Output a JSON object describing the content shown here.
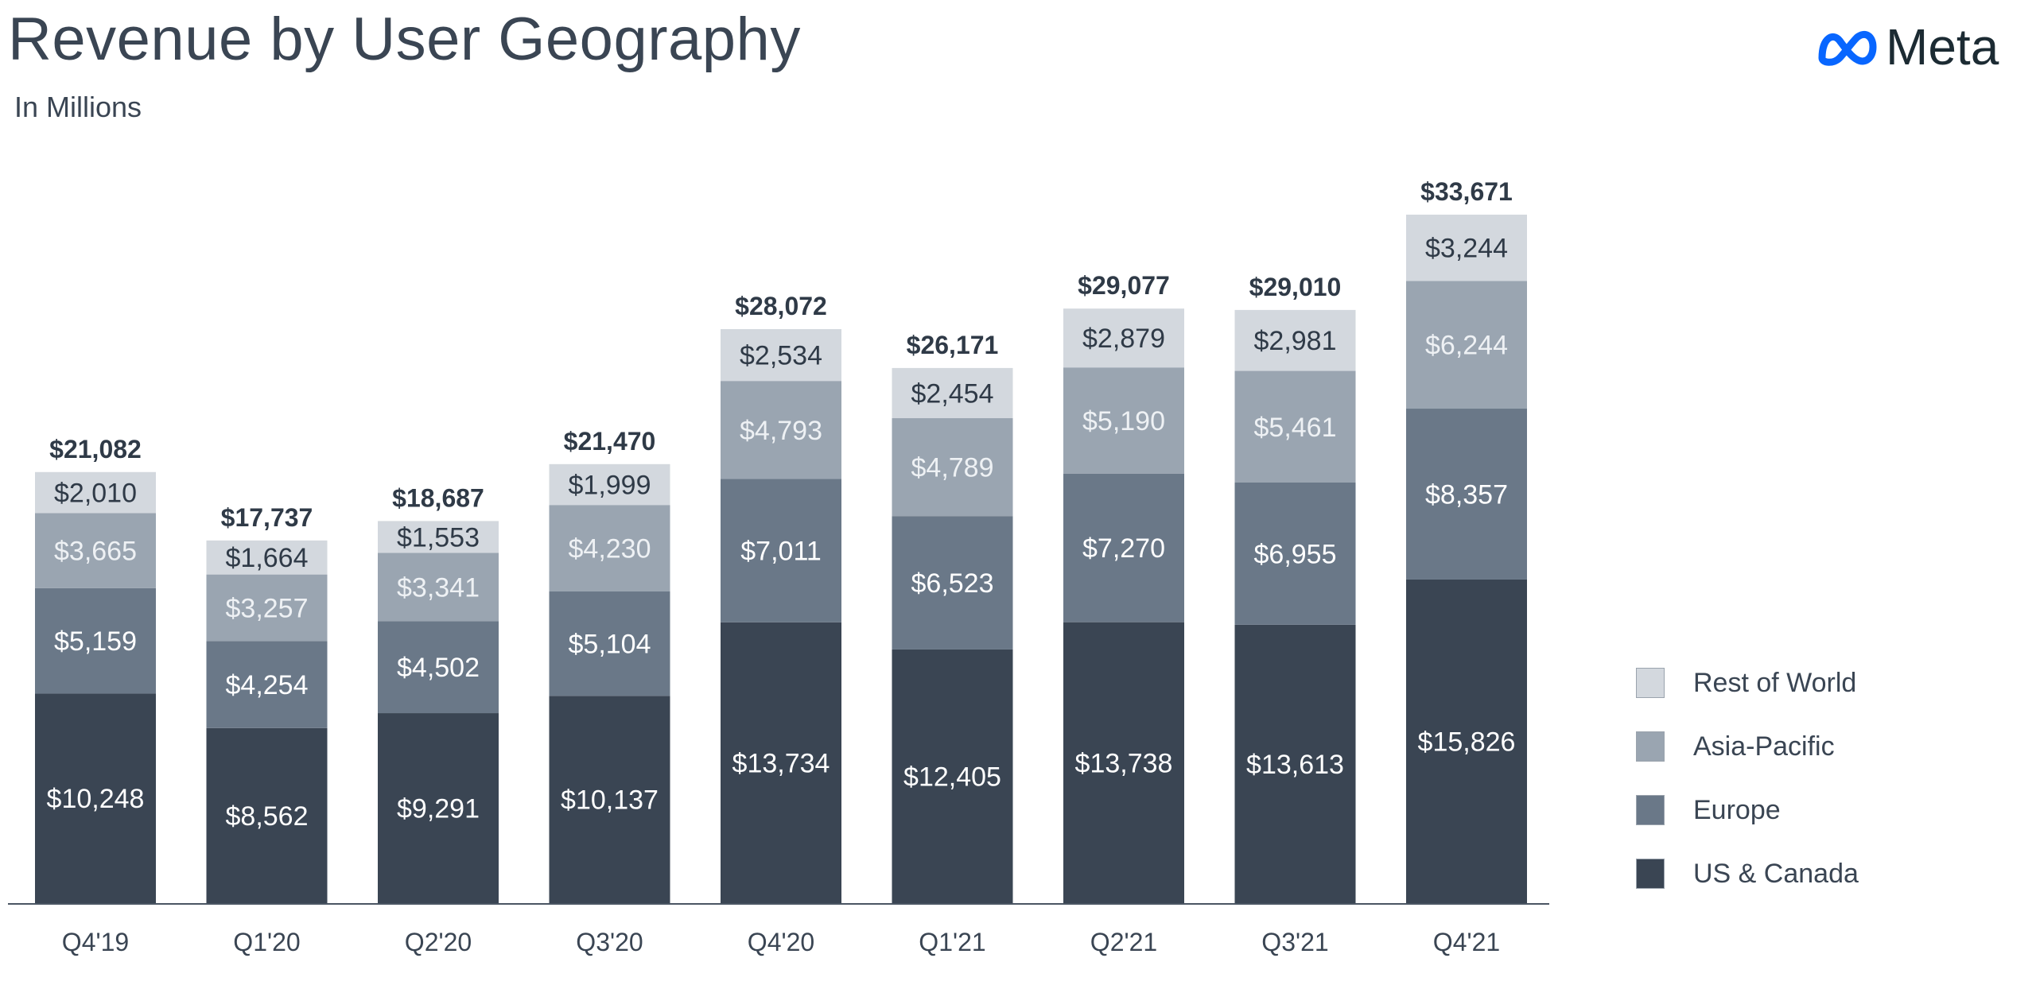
{
  "header": {
    "title": "Revenue by User Geography",
    "subtitle": "In Millions",
    "logo_text": "Meta"
  },
  "colors": {
    "us_canada": "#3a4553",
    "europe": "#6a7888",
    "asia_pacific": "#9aa5b1",
    "rest_of_world": "#d3d8de",
    "title_text": "#3a4553",
    "logo_blue": "#0866ff"
  },
  "legend": [
    {
      "label": "Rest of World",
      "color": "#d3d8de"
    },
    {
      "label": "Asia-Pacific",
      "color": "#9aa5b1"
    },
    {
      "label": "Europe",
      "color": "#6a7888"
    },
    {
      "label": "US & Canada",
      "color": "#3a4553"
    }
  ],
  "chart_data": {
    "type": "bar",
    "stacked": true,
    "title": "Revenue by User Geography",
    "subtitle": "In Millions",
    "categories": [
      "Q4'19",
      "Q1'20",
      "Q2'20",
      "Q3'20",
      "Q4'20",
      "Q1'21",
      "Q2'21",
      "Q3'21",
      "Q4'21"
    ],
    "series": [
      {
        "name": "US & Canada",
        "values": [
          10248,
          8562,
          9291,
          10137,
          13734,
          12405,
          13738,
          13613,
          15826
        ],
        "labels": [
          "$10,248",
          "$8,562",
          "$9,291",
          "$10,137",
          "$13,734",
          "$12,405",
          "$13,738",
          "$13,613",
          "$15,826"
        ]
      },
      {
        "name": "Europe",
        "values": [
          5159,
          4254,
          4502,
          5104,
          7011,
          6523,
          7270,
          6955,
          8357
        ],
        "labels": [
          "$5,159",
          "$4,254",
          "$4,502",
          "$5,104",
          "$7,011",
          "$6,523",
          "$7,270",
          "$6,955",
          "$8,357"
        ]
      },
      {
        "name": "Asia-Pacific",
        "values": [
          3665,
          3257,
          3341,
          4230,
          4793,
          4789,
          5190,
          5461,
          6244
        ],
        "labels": [
          "$3,665",
          "$3,257",
          "$3,341",
          "$4,230",
          "$4,793",
          "$4,789",
          "$5,190",
          "$5,461",
          "$6,244"
        ]
      },
      {
        "name": "Rest of World",
        "values": [
          2010,
          1664,
          1553,
          1999,
          2534,
          2454,
          2879,
          2981,
          3244
        ],
        "labels": [
          "$2,010",
          "$1,664",
          "$1,553",
          "$1,999",
          "$2,534",
          "$2,454",
          "$2,879",
          "$2,981",
          "$3,244"
        ]
      }
    ],
    "totals": [
      21082,
      17737,
      18687,
      21470,
      28072,
      26171,
      29077,
      29010,
      33671
    ],
    "total_labels": [
      "$21,082",
      "$17,737",
      "$18,687",
      "$21,470",
      "$28,072",
      "$26,171",
      "$29,077",
      "$29,010",
      "$33,671"
    ],
    "ylim": [
      0,
      33671
    ],
    "xlabel": "",
    "ylabel": "",
    "grid": false,
    "legend_position": "right"
  }
}
